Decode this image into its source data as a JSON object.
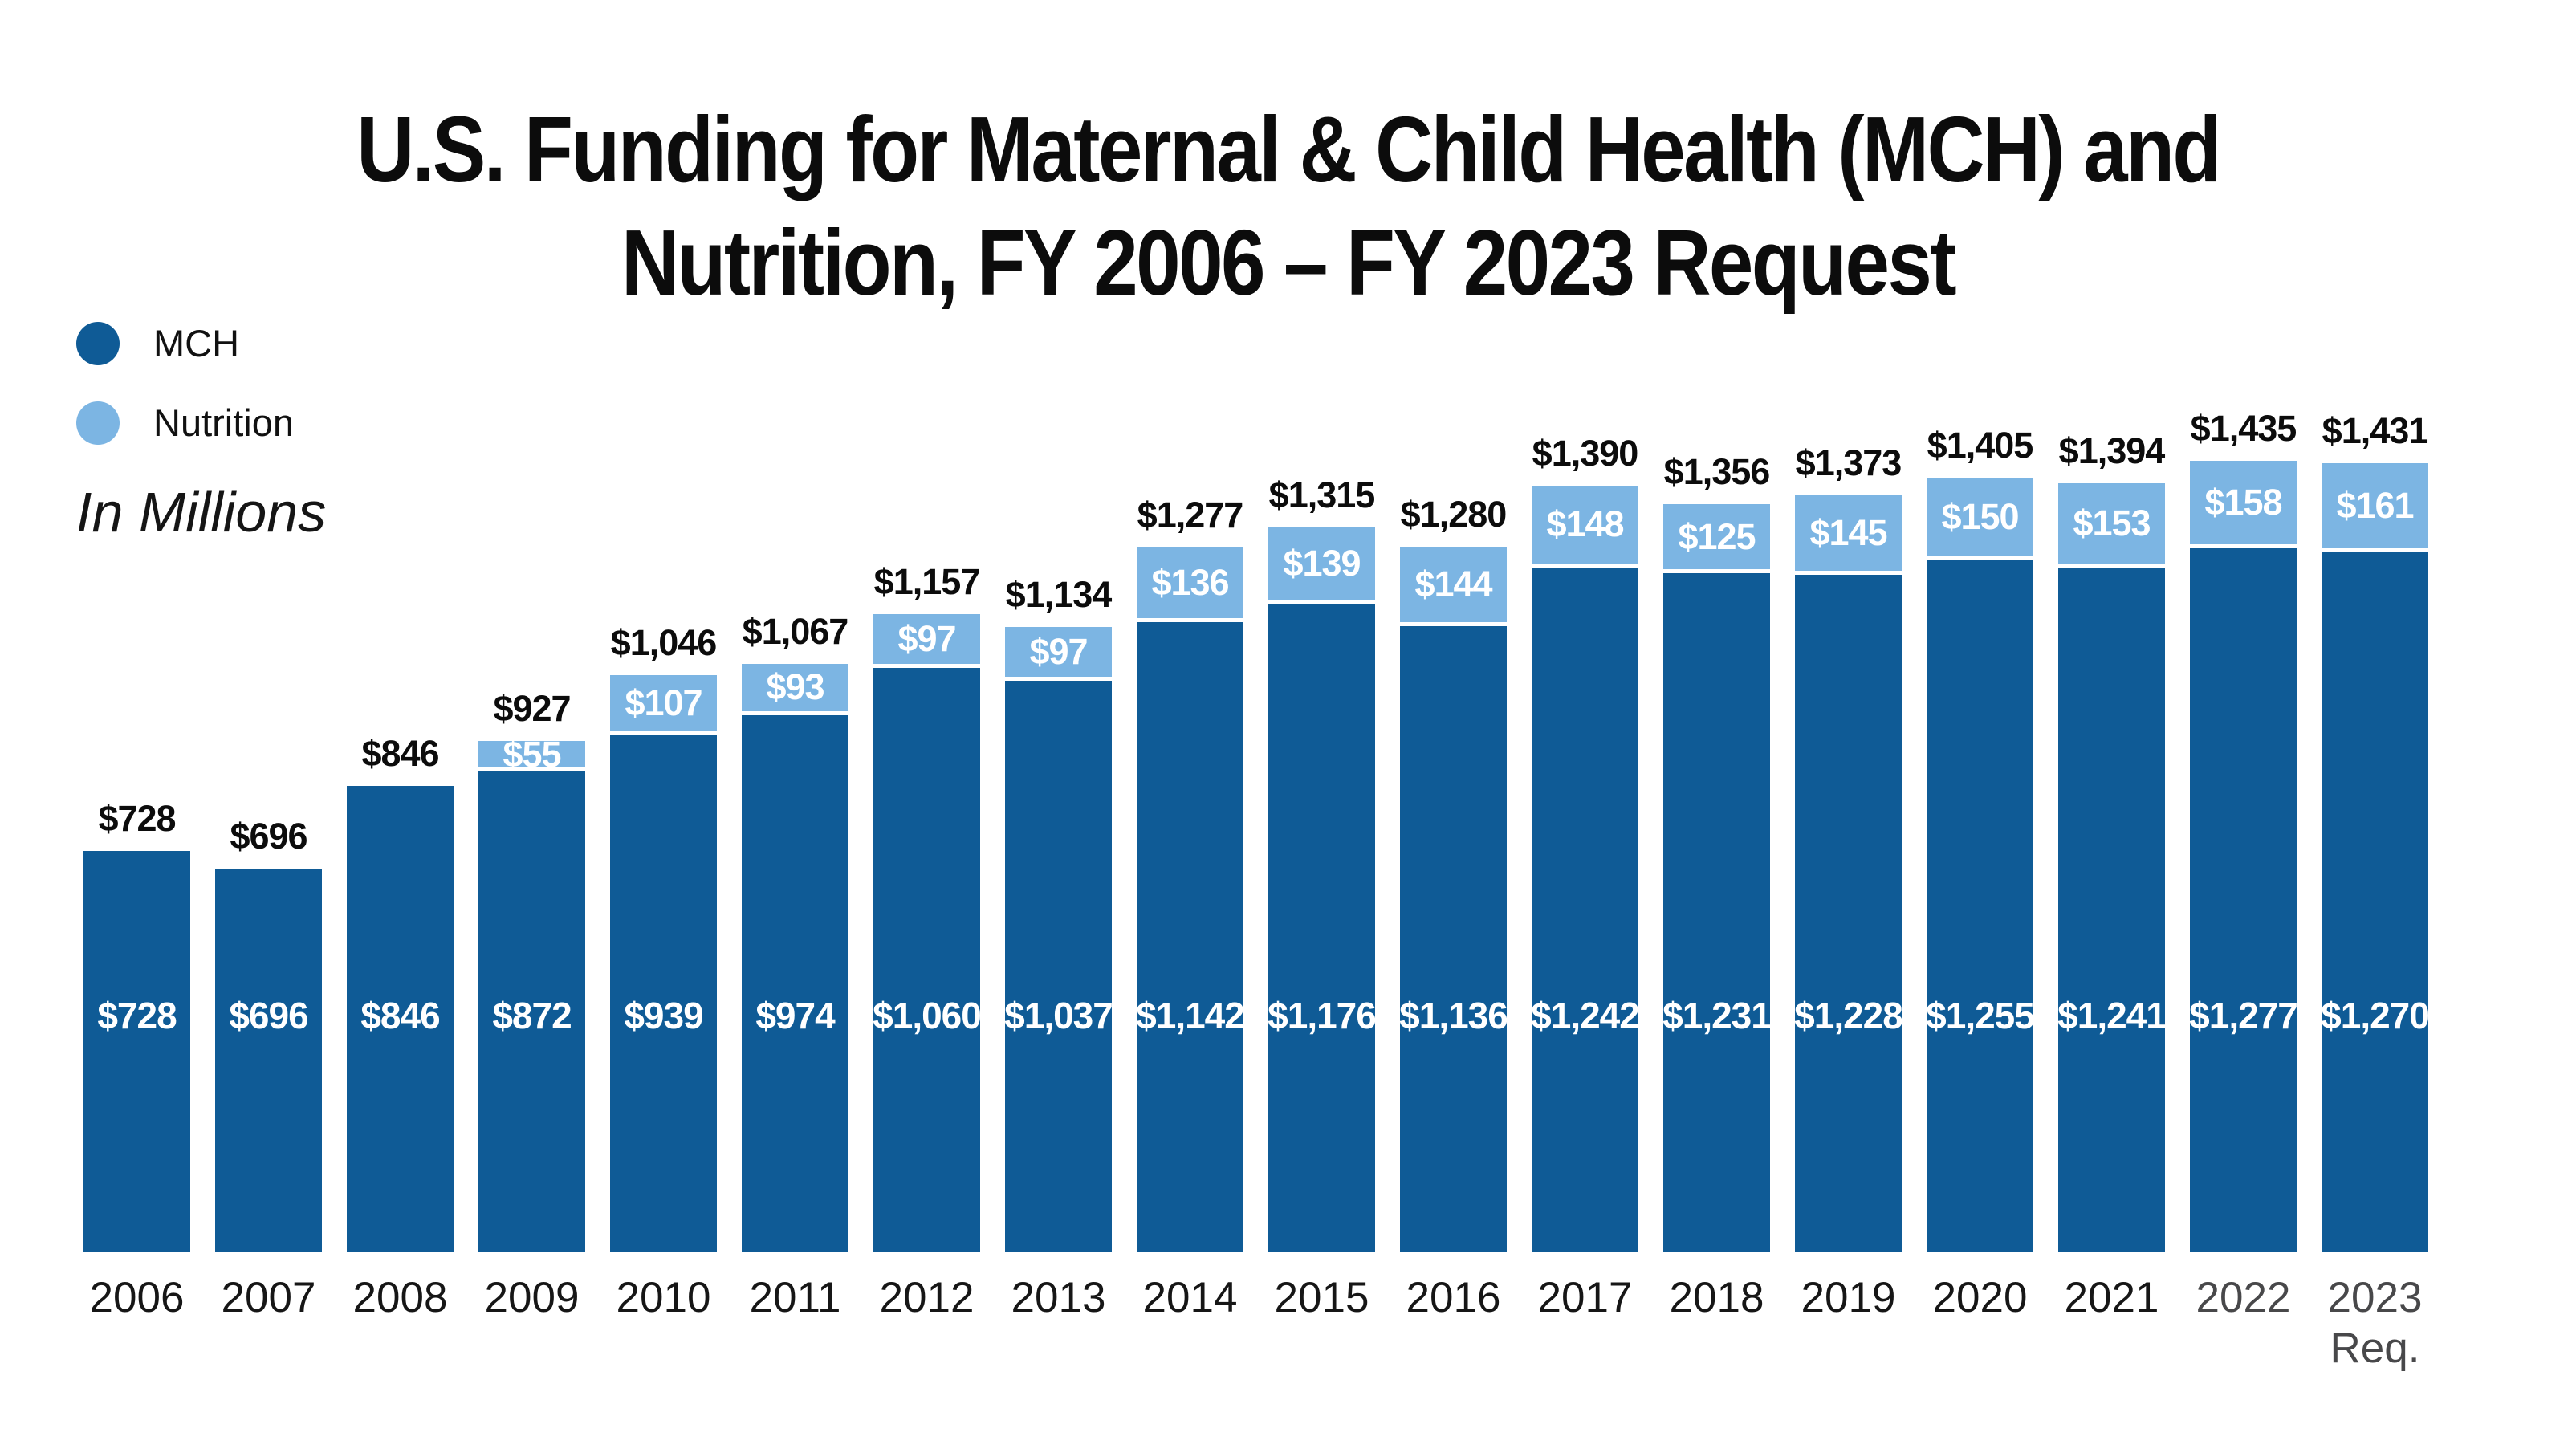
{
  "title": {
    "line1": "U.S. Funding for Maternal & Child Health (MCH) and",
    "line2": "Nutrition, FY 2006 – FY 2023 Request"
  },
  "legend": {
    "items": [
      {
        "label": "MCH",
        "color": "#0F5B96"
      },
      {
        "label": "Nutrition",
        "color": "#7CB5E3"
      }
    ]
  },
  "units_note": "In Millions",
  "chart_data": {
    "type": "bar",
    "stacked": true,
    "title": "U.S. Funding for Maternal & Child Health (MCH) and Nutrition, FY 2006 – FY 2023 Request",
    "units": "In Millions",
    "legend_position": "top-left",
    "grid": false,
    "y_axis_visible": false,
    "categories": [
      {
        "label": "2006"
      },
      {
        "label": "2007"
      },
      {
        "label": "2008"
      },
      {
        "label": "2009"
      },
      {
        "label": "2010"
      },
      {
        "label": "2011"
      },
      {
        "label": "2012"
      },
      {
        "label": "2013"
      },
      {
        "label": "2014"
      },
      {
        "label": "2015"
      },
      {
        "label": "2016"
      },
      {
        "label": "2017"
      },
      {
        "label": "2018"
      },
      {
        "label": "2019"
      },
      {
        "label": "2020"
      },
      {
        "label": "2021"
      },
      {
        "label": "2022",
        "muted": true
      },
      {
        "label": "2023",
        "sublabel": "Req.",
        "muted": true
      }
    ],
    "series": [
      {
        "name": "MCH",
        "color": "#0F5B96",
        "values": [
          728,
          696,
          846,
          872,
          939,
          974,
          1060,
          1037,
          1142,
          1176,
          1136,
          1242,
          1231,
          1228,
          1255,
          1241,
          1277,
          1270
        ],
        "labels": [
          "$728",
          "$696",
          "$846",
          "$872",
          "$939",
          "$974",
          "$1,060",
          "$1,037",
          "$1,142",
          "$1,176",
          "$1,136",
          "$1,242",
          "$1,231",
          "$1,228",
          "$1,255",
          "$1,241",
          "$1,277",
          "$1,270"
        ]
      },
      {
        "name": "Nutrition",
        "color": "#7CB5E3",
        "values": [
          0,
          0,
          0,
          55,
          107,
          93,
          97,
          97,
          136,
          139,
          144,
          148,
          125,
          145,
          150,
          153,
          158,
          161
        ],
        "labels": [
          "",
          "",
          "",
          "$55",
          "$107",
          "$93",
          "$97",
          "$97",
          "$136",
          "$139",
          "$144",
          "$148",
          "$125",
          "$145",
          "$150",
          "$153",
          "$158",
          "$161"
        ]
      }
    ],
    "totals": [
      728,
      696,
      846,
      927,
      1046,
      1067,
      1157,
      1134,
      1277,
      1315,
      1280,
      1390,
      1356,
      1373,
      1405,
      1394,
      1435,
      1431
    ],
    "total_labels": [
      "$728",
      "$696",
      "$846",
      "$927",
      "$1,046",
      "$1,067",
      "$1,157",
      "$1,134",
      "$1,277",
      "$1,315",
      "$1,280",
      "$1,390",
      "$1,356",
      "$1,373",
      "$1,405",
      "$1,394",
      "$1,435",
      "$1,431"
    ]
  }
}
